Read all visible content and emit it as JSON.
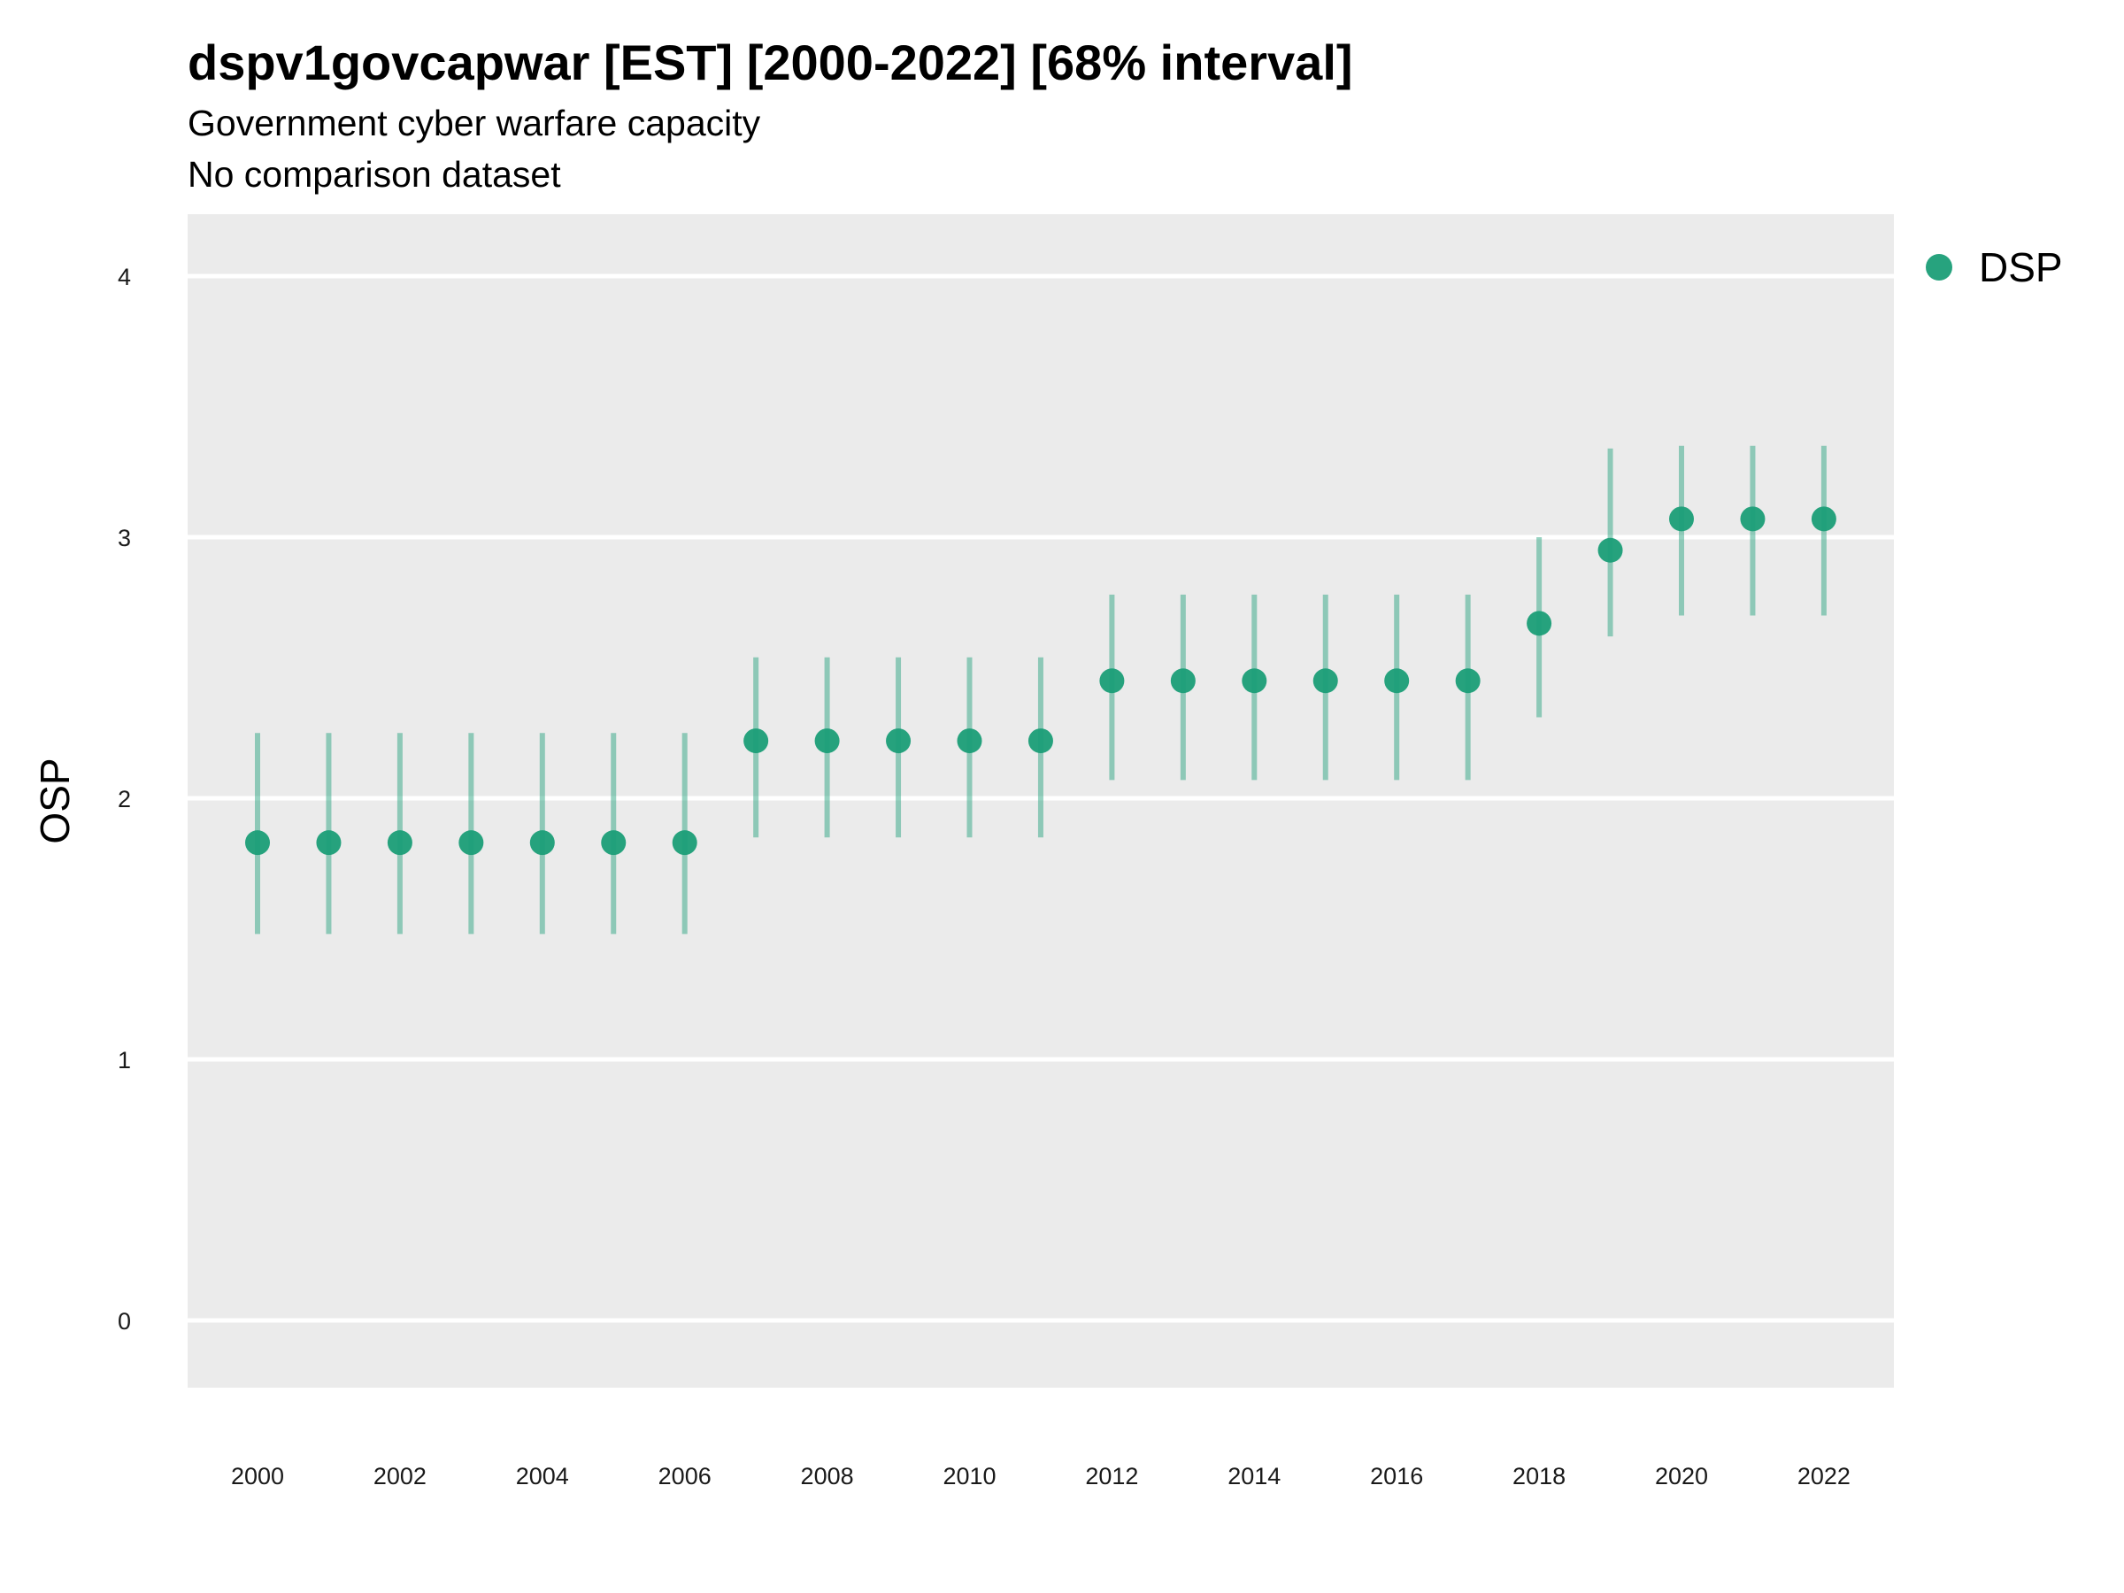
{
  "chart_data": {
    "type": "scatter",
    "title": "dspv1govcapwar [EST] [2000-2022] [68% interval]",
    "subtitle": "Government cyber warfare capacity",
    "subtitle2": "No comparison dataset",
    "ylabel": "OSP",
    "xlabel": "",
    "xlim": [
      1999.0,
      2023.0
    ],
    "ylim": [
      -0.25,
      4.25
    ],
    "x_ticks": [
      2000,
      2002,
      2004,
      2006,
      2008,
      2010,
      2012,
      2014,
      2016,
      2018,
      2020,
      2022
    ],
    "y_ticks": [
      0,
      1,
      2,
      3,
      4
    ],
    "grid": true,
    "legend_position": "right",
    "series": [
      {
        "name": "DSP",
        "color": "#1b9e77",
        "points": [
          {
            "x": 2000,
            "y": 1.83,
            "low": 1.48,
            "high": 2.25
          },
          {
            "x": 2001,
            "y": 1.83,
            "low": 1.48,
            "high": 2.25
          },
          {
            "x": 2002,
            "y": 1.83,
            "low": 1.48,
            "high": 2.25
          },
          {
            "x": 2003,
            "y": 1.83,
            "low": 1.48,
            "high": 2.25
          },
          {
            "x": 2004,
            "y": 1.83,
            "low": 1.48,
            "high": 2.25
          },
          {
            "x": 2005,
            "y": 1.83,
            "low": 1.48,
            "high": 2.25
          },
          {
            "x": 2006,
            "y": 1.83,
            "low": 1.48,
            "high": 2.25
          },
          {
            "x": 2007,
            "y": 2.22,
            "low": 1.85,
            "high": 2.54
          },
          {
            "x": 2008,
            "y": 2.22,
            "low": 1.85,
            "high": 2.54
          },
          {
            "x": 2009,
            "y": 2.22,
            "low": 1.85,
            "high": 2.54
          },
          {
            "x": 2010,
            "y": 2.22,
            "low": 1.85,
            "high": 2.54
          },
          {
            "x": 2011,
            "y": 2.22,
            "low": 1.85,
            "high": 2.54
          },
          {
            "x": 2012,
            "y": 2.45,
            "low": 2.07,
            "high": 2.78
          },
          {
            "x": 2013,
            "y": 2.45,
            "low": 2.07,
            "high": 2.78
          },
          {
            "x": 2014,
            "y": 2.45,
            "low": 2.07,
            "high": 2.78
          },
          {
            "x": 2015,
            "y": 2.45,
            "low": 2.07,
            "high": 2.78
          },
          {
            "x": 2016,
            "y": 2.45,
            "low": 2.07,
            "high": 2.78
          },
          {
            "x": 2017,
            "y": 2.45,
            "low": 2.07,
            "high": 2.78
          },
          {
            "x": 2018,
            "y": 2.67,
            "low": 2.31,
            "high": 3.0
          },
          {
            "x": 2019,
            "y": 2.95,
            "low": 2.62,
            "high": 3.34
          },
          {
            "x": 2020,
            "y": 3.07,
            "low": 2.7,
            "high": 3.35
          },
          {
            "x": 2021,
            "y": 3.07,
            "low": 2.7,
            "high": 3.35
          },
          {
            "x": 2022,
            "y": 3.07,
            "low": 2.7,
            "high": 3.35
          }
        ]
      }
    ]
  }
}
